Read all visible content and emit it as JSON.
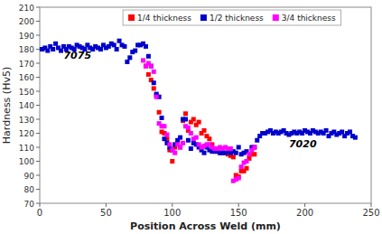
{
  "chart_data": {
    "type": "scatter",
    "xlabel": "Position Across Weld (mm)",
    "ylabel": "Hardness (Hv5)",
    "xlim": [
      0,
      250
    ],
    "ylim": [
      70,
      210
    ],
    "xticks": [
      0,
      50,
      100,
      150,
      200,
      250
    ],
    "yticks": [
      70,
      80,
      90,
      100,
      110,
      120,
      130,
      140,
      150,
      160,
      170,
      180,
      190,
      200,
      210
    ],
    "grid": false,
    "legend": "top",
    "marker": "square",
    "annotations": [
      {
        "text": "7075",
        "x": 18,
        "y": 173
      },
      {
        "text": "7020",
        "x": 188,
        "y": 110
      }
    ],
    "series": [
      {
        "name": "1/4 thickness",
        "color": "#FF0000",
        "x": [
          80,
          82,
          84,
          86,
          88,
          90,
          92,
          94,
          96,
          98,
          100,
          102,
          104,
          106,
          108,
          110,
          112,
          114,
          116,
          118,
          120,
          122,
          124,
          126,
          128,
          130,
          132,
          134,
          136,
          138,
          140,
          142,
          144,
          146,
          148,
          150,
          152,
          154,
          156,
          158,
          160,
          162
        ],
        "values": [
          168,
          162,
          158,
          152,
          147,
          135,
          121,
          120,
          116,
          108,
          100,
          110,
          113,
          110,
          129,
          134,
          122,
          128,
          130,
          126,
          128,
          120,
          122,
          118,
          116,
          112,
          108,
          107,
          106,
          106,
          106,
          105,
          104,
          103,
          90,
          89,
          93,
          93,
          95,
          102,
          105,
          105
        ]
      },
      {
        "name": "1/2 thickness",
        "color": "#0000CC",
        "x": [
          0,
          2,
          4,
          6,
          8,
          10,
          12,
          14,
          16,
          18,
          20,
          22,
          24,
          26,
          28,
          30,
          32,
          34,
          36,
          38,
          40,
          42,
          44,
          46,
          48,
          50,
          52,
          54,
          56,
          58,
          60,
          62,
          64,
          66,
          68,
          70,
          72,
          74,
          76,
          78,
          80,
          82,
          84,
          86,
          88,
          90,
          92,
          94,
          96,
          98,
          100,
          102,
          104,
          106,
          108,
          110,
          112,
          114,
          116,
          118,
          120,
          122,
          124,
          126,
          128,
          130,
          132,
          134,
          136,
          138,
          140,
          142,
          144,
          146,
          148,
          150,
          152,
          154,
          156,
          160,
          162,
          164,
          166,
          168,
          170,
          172,
          174,
          176,
          178,
          180,
          182,
          184,
          186,
          188,
          190,
          192,
          194,
          196,
          198,
          200,
          202,
          204,
          206,
          208,
          210,
          212,
          214,
          216,
          218,
          220,
          222,
          224,
          226,
          228,
          230,
          232,
          234,
          236,
          238
        ],
        "values": [
          180,
          180,
          181,
          179,
          182,
          180,
          184,
          181,
          179,
          182,
          180,
          182,
          181,
          180,
          183,
          182,
          181,
          180,
          183,
          181,
          180,
          182,
          181,
          180,
          183,
          181,
          182,
          184,
          183,
          180,
          186,
          183,
          182,
          171,
          174,
          178,
          179,
          183,
          183,
          184,
          182,
          175,
          168,
          156,
          148,
          146,
          131,
          116,
          113,
          110,
          108,
          112,
          115,
          117,
          130,
          130,
          115,
          109,
          113,
          112,
          110,
          108,
          106,
          110,
          108,
          107,
          107,
          107,
          106,
          106,
          106,
          107,
          106,
          107,
          106,
          110,
          105,
          106,
          107,
          110,
          110,
          115,
          118,
          120,
          120,
          121,
          122,
          120,
          121,
          120,
          121,
          122,
          120,
          119,
          120,
          121,
          120,
          121,
          120,
          122,
          121,
          120,
          122,
          121,
          120,
          121,
          120,
          122,
          118,
          120,
          121,
          119,
          120,
          121,
          118,
          120,
          121,
          118,
          117
        ]
      },
      {
        "name": "3/4 thickness",
        "color": "#FF00FF",
        "x": [
          78,
          80,
          82,
          84,
          86,
          88,
          90,
          92,
          94,
          96,
          98,
          100,
          102,
          104,
          106,
          108,
          110,
          112,
          114,
          116,
          118,
          120,
          122,
          124,
          126,
          128,
          130,
          132,
          134,
          136,
          138,
          140,
          142,
          144,
          146,
          148,
          150,
          152,
          154,
          156,
          158,
          160,
          162
        ],
        "values": [
          172,
          168,
          170,
          168,
          164,
          146,
          127,
          125,
          125,
          119,
          112,
          108,
          106,
          112,
          110,
          113,
          125,
          124,
          120,
          116,
          117,
          112,
          110,
          111,
          112,
          112,
          110,
          109,
          109,
          110,
          109,
          110,
          109,
          109,
          86,
          87,
          88,
          96,
          99,
          100,
          105,
          108,
          110
        ]
      }
    ]
  }
}
